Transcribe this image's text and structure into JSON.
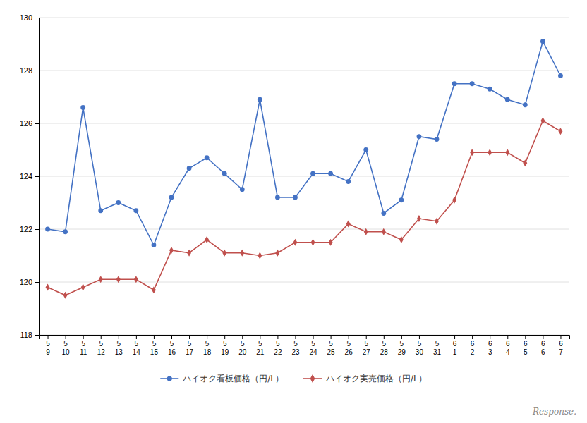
{
  "chart_data": {
    "type": "line",
    "categories": [
      "5\n9",
      "5\n10",
      "5\n11",
      "5\n12",
      "5\n13",
      "5\n14",
      "5\n15",
      "5\n16",
      "5\n17",
      "5\n18",
      "5\n19",
      "5\n20",
      "5\n21",
      "5\n22",
      "5\n23",
      "5\n24",
      "5\n25",
      "5\n26",
      "5\n27",
      "5\n28",
      "5\n29",
      "5\n30",
      "5\n31",
      "6\n1",
      "6\n2",
      "6\n3",
      "6\n4",
      "6\n5",
      "6\n6",
      "6\n7"
    ],
    "series": [
      {
        "name": "ハイオク看板価格（円/L）",
        "color": "#4472C4",
        "marker": "circle",
        "values": [
          122.0,
          121.9,
          126.6,
          122.7,
          123.0,
          122.7,
          121.4,
          123.2,
          124.3,
          124.7,
          124.1,
          123.5,
          126.9,
          123.2,
          123.2,
          124.1,
          124.1,
          123.8,
          125.0,
          122.6,
          123.1,
          125.5,
          125.4,
          127.5,
          127.5,
          127.3,
          126.9,
          126.7,
          129.1,
          127.8
        ]
      },
      {
        "name": "ハイオク実売価格（円/L）",
        "color": "#C0504D",
        "marker": "diamond",
        "values": [
          119.8,
          119.5,
          119.8,
          120.1,
          120.1,
          120.1,
          119.7,
          121.2,
          121.1,
          121.6,
          121.1,
          121.1,
          121.0,
          121.1,
          121.5,
          121.5,
          121.5,
          122.2,
          121.9,
          121.9,
          121.6,
          122.4,
          122.3,
          123.1,
          124.9,
          124.9,
          124.9,
          124.5,
          126.1,
          125.7
        ]
      }
    ],
    "ylim": [
      118,
      130
    ],
    "yticks": [
      118,
      120,
      122,
      124,
      126,
      128,
      130
    ],
    "grid": true,
    "legend": "bottom",
    "annotations": [
      "Response."
    ]
  }
}
